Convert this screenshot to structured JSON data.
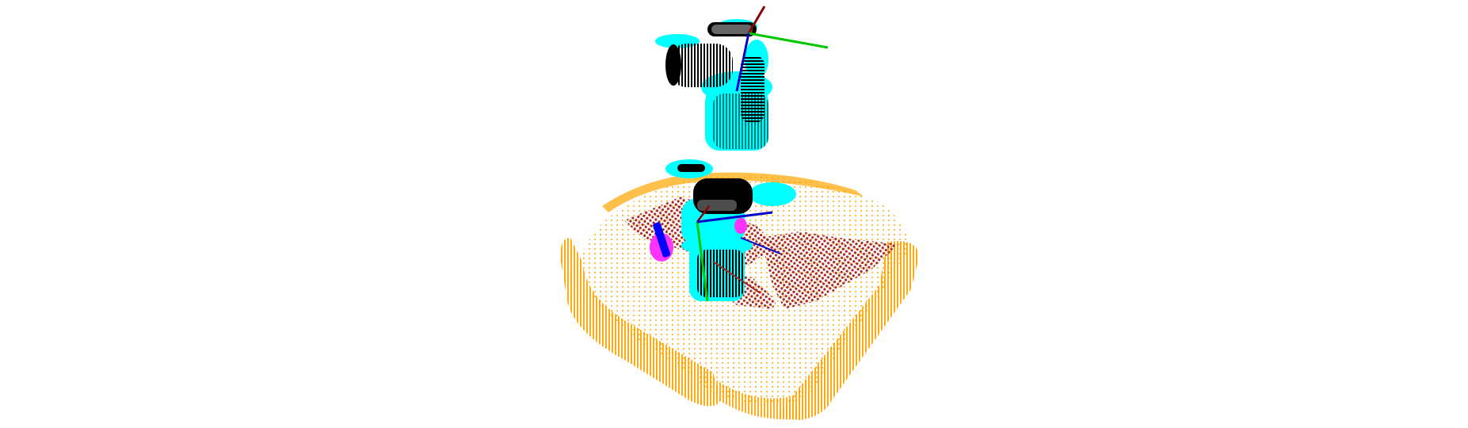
{
  "scene": {
    "background": "#ffffff",
    "colors": {
      "container": "#ffa500",
      "floor_patch": "#a52a2a",
      "object_outline": "#00ffff",
      "object_body": "#000000",
      "contact_points": "#ff33ff",
      "axis_x": "#8b0000",
      "axis_y": "#00c800",
      "axis_z": "#0000cc",
      "blue_marker": "#0000ff"
    },
    "elements": [
      "orange-container-point-cloud",
      "brown-floor-patch-points",
      "upper-gripper-object",
      "lower-gripper-object",
      "coordinate-axes"
    ]
  }
}
